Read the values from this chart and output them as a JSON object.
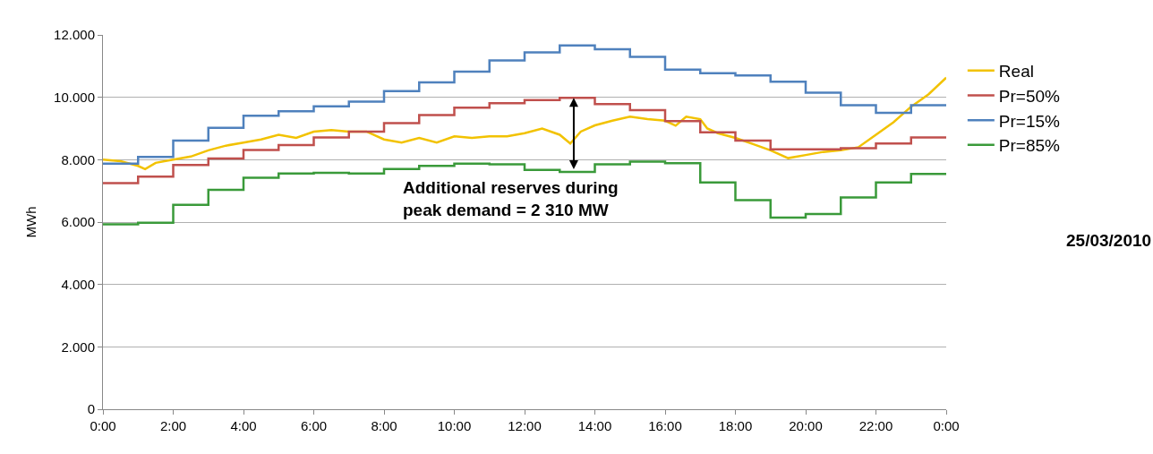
{
  "chart_data": {
    "type": "step",
    "ylabel": "MWh",
    "annotations": [
      {
        "text": "Additional reserves during\npeak demand = 2 310 MW",
        "x": 13.4,
        "y": 7650
      },
      "25/03/2010"
    ],
    "x": [
      0,
      1,
      2,
      3,
      4,
      5,
      6,
      7,
      8,
      9,
      10,
      11,
      12,
      13,
      14,
      15,
      16,
      17,
      18,
      19,
      20,
      21,
      22,
      23,
      24
    ],
    "xlim": [
      0,
      24
    ],
    "xticks": [
      {
        "value": 0,
        "label": "0:00"
      },
      {
        "value": 2,
        "label": "2:00"
      },
      {
        "value": 4,
        "label": "4:00"
      },
      {
        "value": 6,
        "label": "6:00"
      },
      {
        "value": 8,
        "label": "8:00"
      },
      {
        "value": 10,
        "label": "10:00"
      },
      {
        "value": 12,
        "label": "12:00"
      },
      {
        "value": 14,
        "label": "14:00"
      },
      {
        "value": 16,
        "label": "16:00"
      },
      {
        "value": 18,
        "label": "18:00"
      },
      {
        "value": 20,
        "label": "20:00"
      },
      {
        "value": 22,
        "label": "22:00"
      },
      {
        "value": 24,
        "label": "0:00"
      }
    ],
    "ylim": [
      0,
      12000
    ],
    "yticks": [
      0,
      {
        "value": 2000,
        "label": "2.000"
      },
      {
        "value": 4000,
        "label": "4.000"
      },
      {
        "value": 6000,
        "label": "6.000"
      },
      {
        "value": 8000,
        "label": "8.000"
      },
      {
        "value": 10000,
        "label": "10.000"
      },
      {
        "value": 12000,
        "label": "12.000"
      }
    ],
    "grid": "y",
    "legend": "right",
    "line_style": "solid",
    "marker": "none",
    "series": [
      {
        "name": "Real",
        "type": "line",
        "color": "#f2c200",
        "x": [
          0,
          0.5,
          1,
          1.2,
          1.5,
          2,
          2.5,
          3,
          3.5,
          4,
          4.5,
          5,
          5.5,
          6,
          6.5,
          7,
          7.5,
          8,
          8.5,
          9,
          9.5,
          10,
          10.5,
          11,
          11.5,
          12,
          12.5,
          13,
          13.3,
          13.6,
          14,
          14.5,
          15,
          15.5,
          16,
          16.3,
          16.6,
          17,
          17.2,
          17.5,
          18,
          18.5,
          19,
          19.5,
          20,
          20.5,
          21,
          21.5,
          22,
          22.5,
          23,
          23.5,
          24
        ],
        "values": [
          8000,
          7950,
          7800,
          7700,
          7900,
          8000,
          8100,
          8300,
          8450,
          8550,
          8650,
          8800,
          8700,
          8900,
          8950,
          8900,
          8900,
          8650,
          8550,
          8700,
          8550,
          8750,
          8700,
          8750,
          8750,
          8850,
          9000,
          8800,
          8520,
          8900,
          9100,
          9250,
          9380,
          9300,
          9250,
          9090,
          9380,
          9300,
          9000,
          8850,
          8700,
          8500,
          8300,
          8050,
          8150,
          8250,
          8300,
          8400,
          8800,
          9200,
          9700,
          10100,
          10630
        ]
      },
      {
        "name": "Pr=50%",
        "color": "#c0504d",
        "values": [
          7250,
          7460,
          7830,
          8040,
          8310,
          8470,
          8710,
          8900,
          9170,
          9430,
          9670,
          9810,
          9910,
          9980,
          9780,
          9590,
          9240,
          8880,
          8610,
          8330,
          8330,
          8370,
          8520,
          8710,
          8710
        ]
      },
      {
        "name": "Pr=15%",
        "color": "#4f81bd",
        "values": [
          7870,
          8090,
          8610,
          9020,
          9410,
          9550,
          9710,
          9860,
          10200,
          10480,
          10820,
          11180,
          11440,
          11660,
          11540,
          11300,
          10890,
          10770,
          10700,
          10500,
          10150,
          9750,
          9500,
          9750,
          9750
        ]
      },
      {
        "name": "Pr=85%",
        "color": "#3a9a3a",
        "values": [
          5930,
          5980,
          6550,
          7030,
          7420,
          7560,
          7580,
          7560,
          7700,
          7800,
          7870,
          7850,
          7670,
          7610,
          7850,
          7940,
          7890,
          7270,
          6700,
          6140,
          6260,
          6790,
          7270,
          7540,
          7540
        ]
      }
    ]
  }
}
